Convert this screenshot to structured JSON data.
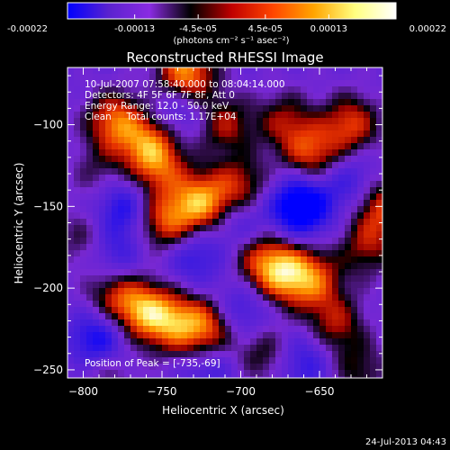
{
  "colorbar": {
    "tick_labels": [
      "-0.00022",
      "-0.00013",
      "-4.5e-05",
      "4.5e-05",
      "0.00013",
      "0.00022"
    ],
    "range": [
      -0.00022,
      0.00022
    ],
    "units": "(photons cm⁻² s⁻¹ asec⁻²)",
    "colors": [
      "#0000ff",
      "#5a22cf",
      "#8a2be2",
      "#000000",
      "#c00000",
      "#ff4500",
      "#ffa500",
      "#ffff80",
      "#ffffff"
    ]
  },
  "chart_data": {
    "type": "heatmap",
    "title": "Reconstructed RHESSI Image",
    "xlabel": "Heliocentric X (arcsec)",
    "ylabel": "Heliocentric Y (arcsec)",
    "xlim": [
      -810,
      -610
    ],
    "ylim": [
      -255,
      -65
    ],
    "x_ticks": [
      -800,
      -750,
      -700,
      -650
    ],
    "y_ticks": [
      -100,
      -150,
      -200,
      -250
    ],
    "x_tick_labels": [
      "−800",
      "−750",
      "−700",
      "−650"
    ],
    "y_tick_labels": [
      "−100",
      "−150",
      "−200",
      "−250"
    ],
    "annotations": [
      "10-Jul-2007 07:58:40.000 to 08:04:14.000",
      "Detectors: 4F 5F 6F 7F 8F, Att 0",
      "Energy Range: 12.0 - 50.0 keV",
      "Clean     Total counts: 1.17E+04"
    ],
    "peak_label": "Position of Peak = [-735,-69]",
    "peak": [
      -735,
      -69
    ],
    "sources": [
      {
        "x": -735,
        "y": -69,
        "v": 1.0
      },
      {
        "x": -780,
        "y": -98,
        "v": 0.8
      },
      {
        "x": -758,
        "y": -112,
        "v": 0.75
      },
      {
        "x": -752,
        "y": -128,
        "v": 0.55
      },
      {
        "x": -710,
        "y": -100,
        "v": 0.55
      },
      {
        "x": -672,
        "y": -98,
        "v": 0.5
      },
      {
        "x": -655,
        "y": -118,
        "v": 0.7
      },
      {
        "x": -630,
        "y": -100,
        "v": 0.7
      },
      {
        "x": -700,
        "y": -138,
        "v": 0.6
      },
      {
        "x": -725,
        "y": -148,
        "v": 0.95
      },
      {
        "x": -748,
        "y": -160,
        "v": 0.75
      },
      {
        "x": -610,
        "y": -150,
        "v": 0.7
      },
      {
        "x": -690,
        "y": -180,
        "v": 0.45
      },
      {
        "x": -675,
        "y": -190,
        "v": 0.9
      },
      {
        "x": -655,
        "y": -195,
        "v": 0.75
      },
      {
        "x": -620,
        "y": -175,
        "v": 0.5
      },
      {
        "x": -780,
        "y": -205,
        "v": 0.6
      },
      {
        "x": -760,
        "y": -215,
        "v": 0.9
      },
      {
        "x": -740,
        "y": -222,
        "v": 0.7
      },
      {
        "x": -720,
        "y": -225,
        "v": 0.75
      },
      {
        "x": -640,
        "y": -222,
        "v": 0.55
      },
      {
        "x": -685,
        "y": -240,
        "v": 0.45
      },
      {
        "x": -785,
        "y": -250,
        "v": 0.35
      },
      {
        "x": -625,
        "y": -250,
        "v": 0.4
      },
      {
        "x": -800,
        "y": -170,
        "v": 0.35
      },
      {
        "x": -790,
        "y": -130,
        "v": 0.3
      }
    ],
    "negative_sources": [
      {
        "x": -662,
        "y": -150,
        "v": -1.0
      },
      {
        "x": -790,
        "y": -232,
        "v": -0.7
      },
      {
        "x": -775,
        "y": -150,
        "v": -0.55
      },
      {
        "x": -730,
        "y": -180,
        "v": -0.45
      },
      {
        "x": -700,
        "y": -160,
        "v": -0.4
      },
      {
        "x": -700,
        "y": -215,
        "v": -0.45
      },
      {
        "x": -740,
        "y": -90,
        "v": -0.4
      },
      {
        "x": -630,
        "y": -135,
        "v": -0.4
      },
      {
        "x": -720,
        "y": -248,
        "v": -0.35
      },
      {
        "x": -660,
        "y": -245,
        "v": -0.45
      },
      {
        "x": -780,
        "y": -180,
        "v": -0.4
      }
    ]
  },
  "footer": {
    "timestamp": "24-Jul-2013 04:43"
  }
}
